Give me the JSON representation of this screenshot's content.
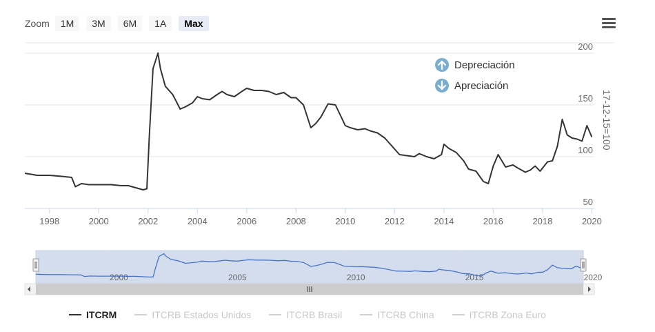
{
  "toolbar": {
    "zoom_label": "Zoom",
    "buttons": [
      "1M",
      "3M",
      "6M",
      "1A",
      "Max"
    ],
    "active": "Max",
    "menu_icon": "hamburger-menu-icon"
  },
  "chart_data": {
    "type": "line",
    "title": "",
    "xlabel": "",
    "ylabel": "17-12-15=100",
    "xlim": [
      1997,
      2020.1
    ],
    "ylim": [
      50,
      210
    ],
    "x_ticks": [
      "1998",
      "2000",
      "2002",
      "2004",
      "2006",
      "2008",
      "2010",
      "2012",
      "2014",
      "2016",
      "2018",
      "2020"
    ],
    "y_ticks": [
      "50",
      "100",
      "150",
      "200"
    ],
    "grid": "horizontal",
    "annotations": [
      {
        "text": "Depreciación",
        "icon": "arrow-up-circle-icon",
        "color": "#7aaed0"
      },
      {
        "text": "Apreciación",
        "icon": "arrow-down-circle-icon",
        "color": "#7aaed0"
      }
    ],
    "series": [
      {
        "name": "ITCRM",
        "visible": true,
        "color": "#333333",
        "x": [
          1997.0,
          1997.5,
          1998.0,
          1998.5,
          1998.9,
          1999.05,
          1999.3,
          1999.6,
          2000.0,
          2000.5,
          2000.9,
          2001.2,
          2001.5,
          2001.8,
          2001.95,
          2002.05,
          2002.2,
          2002.4,
          2002.5,
          2002.7,
          2003.0,
          2003.3,
          2003.5,
          2003.8,
          2004.0,
          2004.2,
          2004.5,
          2004.8,
          2005.0,
          2005.2,
          2005.5,
          2005.8,
          2006.0,
          2006.3,
          2006.6,
          2006.9,
          2007.2,
          2007.5,
          2007.8,
          2008.0,
          2008.3,
          2008.6,
          2008.8,
          2009.0,
          2009.3,
          2009.6,
          2009.8,
          2010.0,
          2010.2,
          2010.5,
          2010.8,
          2011.0,
          2011.3,
          2011.6,
          2011.9,
          2012.2,
          2012.5,
          2012.8,
          2013.0,
          2013.3,
          2013.6,
          2013.9,
          2014.0,
          2014.2,
          2014.5,
          2014.8,
          2015.0,
          2015.3,
          2015.6,
          2015.8,
          2016.0,
          2016.2,
          2016.5,
          2016.8,
          2017.0,
          2017.3,
          2017.5,
          2017.7,
          2017.9,
          2018.2,
          2018.4,
          2018.6,
          2018.8,
          2019.0,
          2019.2,
          2019.4,
          2019.6,
          2019.8,
          2020.0
        ],
        "y": [
          84,
          82,
          82,
          81,
          80,
          71,
          74,
          73,
          73,
          73,
          72,
          72,
          70,
          68,
          69,
          120,
          185,
          200,
          185,
          168,
          160,
          146,
          148,
          152,
          158,
          156,
          155,
          160,
          163,
          160,
          158,
          163,
          166,
          164,
          164,
          163,
          160,
          162,
          157,
          157,
          150,
          128,
          132,
          138,
          151,
          150,
          140,
          130,
          128,
          126,
          127,
          125,
          123,
          118,
          110,
          102,
          101,
          100,
          103,
          100,
          98,
          102,
          112,
          108,
          104,
          96,
          88,
          86,
          76,
          74,
          91,
          102,
          90,
          92,
          89,
          85,
          87,
          91,
          86,
          95,
          96,
          110,
          136,
          121,
          118,
          117,
          115,
          130,
          119
        ]
      },
      {
        "name": "ITCRB Estados Unidos",
        "visible": false
      },
      {
        "name": "ITCRB Brasil",
        "visible": false
      },
      {
        "name": "ITCRB China",
        "visible": false
      },
      {
        "name": "ITCRB Zona Euro",
        "visible": false
      }
    ],
    "navigator": {
      "x_ticks": [
        "2000",
        "2005",
        "2010",
        "2015",
        "2020"
      ],
      "range": [
        1997,
        2020.1
      ]
    }
  }
}
